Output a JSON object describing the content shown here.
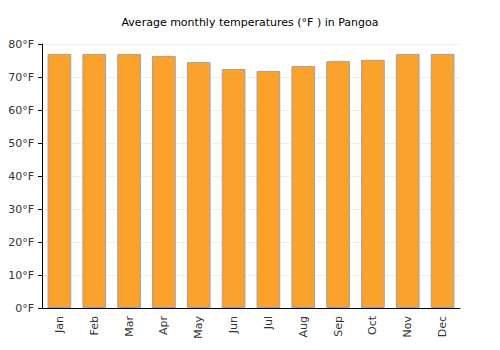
{
  "chart_data": {
    "type": "bar",
    "title": "Average monthly temperatures (°F ) in Pangoa",
    "categories": [
      "Jan",
      "Feb",
      "Mar",
      "Apr",
      "May",
      "Jun",
      "Jul",
      "Aug",
      "Sep",
      "Oct",
      "Nov",
      "Dec"
    ],
    "values": [
      77,
      77,
      77,
      76.4,
      74.5,
      72.4,
      71.8,
      73.3,
      74.8,
      75.2,
      77,
      77
    ],
    "color": "#fba22c",
    "ylim": [
      0,
      80
    ],
    "yticks": [
      {
        "value": 0,
        "label": "0°F"
      },
      {
        "value": 10,
        "label": "10°F"
      },
      {
        "value": 20,
        "label": "20°F"
      },
      {
        "value": 30,
        "label": "30°F"
      },
      {
        "value": 40,
        "label": "40°F"
      },
      {
        "value": 50,
        "label": "50°F"
      },
      {
        "value": 60,
        "label": "60°F"
      },
      {
        "value": 70,
        "label": "70°F"
      },
      {
        "value": 80,
        "label": "80°F"
      }
    ],
    "grid": true
  }
}
